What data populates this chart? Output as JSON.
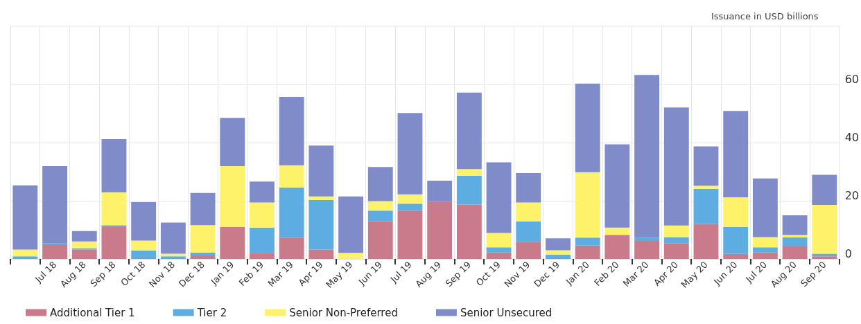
{
  "chart_data": {
    "type": "bar",
    "stacked": true,
    "ylabel": "Issuance in USD billions",
    "categories": [
      null,
      "Jul 18",
      "Aug 18",
      "Sep 18",
      "Oct 18",
      "Nov 18",
      "Dec 18",
      "Jan 19",
      "Feb 19",
      "Mar 19",
      "Apr 19",
      "May 19",
      "Jun 19",
      "Jul 19",
      "Aug 19",
      "Sep 19",
      "Oct 19",
      "Nov 19",
      "Dec 19",
      "Jan 20",
      "Feb 20",
      "Mar 20",
      "Apr 20",
      "May 20",
      "Jun 20",
      "Jul 20",
      "Aug 20",
      "Sep 20"
    ],
    "series": [
      {
        "name": "Additional Tier 1",
        "color": "#c97b8c",
        "values": [
          0,
          5.0,
          3.2,
          11.3,
          0,
          0,
          1.2,
          11.0,
          2.1,
          7.3,
          3.2,
          0,
          12.9,
          16.6,
          19.6,
          18.7,
          2.2,
          5.9,
          0,
          4.6,
          8.3,
          6.2,
          5.4,
          12.0,
          1.7,
          2.2,
          4.3,
          0.9
        ]
      },
      {
        "name": "Tier 2",
        "color": "#5dade2",
        "values": [
          0.9,
          0.3,
          0.5,
          0.3,
          2.9,
          0.9,
          1.0,
          0,
          8.7,
          17.2,
          17.1,
          0,
          3.7,
          2.4,
          0,
          9.9,
          1.8,
          7.0,
          1.4,
          2.7,
          0,
          1.1,
          2.1,
          12.1,
          9.3,
          1.8,
          3.1,
          0.9
        ]
      },
      {
        "name": "Senior Non-Preferred",
        "color": "#fef26a",
        "values": [
          2.3,
          0,
          2.3,
          11.3,
          3.4,
          0.9,
          9.4,
          20.9,
          8.6,
          7.7,
          1.2,
          2.1,
          3.3,
          3.2,
          0,
          2.3,
          4.9,
          6.5,
          1.6,
          22.5,
          2.5,
          0,
          4.0,
          1.1,
          10.2,
          3.5,
          0.8,
          16.8
        ]
      },
      {
        "name": "Senior Unsecured",
        "color": "#7f8cc9",
        "values": [
          22.1,
          26.6,
          3.6,
          18.3,
          13.2,
          10.7,
          11.1,
          16.6,
          7.2,
          23.5,
          17.5,
          19.4,
          11.7,
          28.0,
          7.3,
          26.3,
          24.3,
          10.1,
          4.1,
          30.5,
          28.6,
          56.0,
          40.6,
          13.5,
          29.7,
          20.2,
          6.8,
          10.3
        ]
      }
    ],
    "ylim": [
      0,
      80
    ],
    "yticks": [
      0,
      20,
      40,
      60
    ],
    "grid": true,
    "legend": "bottom left"
  }
}
